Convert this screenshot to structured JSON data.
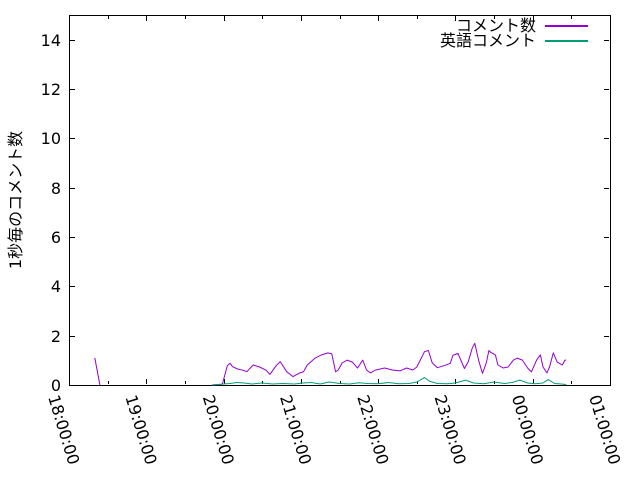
{
  "chart_data": {
    "type": "line",
    "title": "",
    "xlabel": "",
    "ylabel": "1秒毎のコメント数",
    "ylim": [
      0,
      15
    ],
    "y_ticks": [
      0,
      2,
      4,
      6,
      8,
      10,
      12,
      14
    ],
    "x_ticks": [
      "18:00:00",
      "19:00:00",
      "20:00:00",
      "21:00:00",
      "22:00:00",
      "23:00:00",
      "00:00:00",
      "01:00:00"
    ],
    "x_minor_ticks_per_interval": 1,
    "grid": false,
    "legend_position": "top-right-inside",
    "background_color": "#ffffff",
    "axis_color": "#000000",
    "series": [
      {
        "name": "コメント数",
        "color": "#9400d3",
        "segments": [
          [
            [
              "18:20",
              1.1
            ],
            [
              "18:24",
              0
            ]
          ],
          [
            [
              "19:51",
              0
            ],
            [
              "19:59",
              0.03
            ],
            [
              "20:03",
              0.79
            ],
            [
              "20:05",
              0.88
            ],
            [
              "20:07",
              0.74
            ],
            [
              "20:11",
              0.65
            ],
            [
              "20:15",
              0.6
            ],
            [
              "20:18",
              0.54
            ],
            [
              "20:23",
              0.81
            ],
            [
              "20:28",
              0.73
            ],
            [
              "20:33",
              0.6
            ],
            [
              "20:36",
              0.43
            ],
            [
              "20:41",
              0.8
            ],
            [
              "20:44",
              0.95
            ],
            [
              "20:49",
              0.54
            ],
            [
              "20:54",
              0.34
            ],
            [
              "20:59",
              0.49
            ],
            [
              "21:02",
              0.53
            ],
            [
              "21:05",
              0.81
            ],
            [
              "21:11",
              1.09
            ],
            [
              "21:16",
              1.22
            ],
            [
              "21:21",
              1.3
            ],
            [
              "21:24",
              1.26
            ],
            [
              "21:27",
              0.53
            ],
            [
              "21:29",
              0.61
            ],
            [
              "21:32",
              0.89
            ],
            [
              "21:36",
              1.01
            ],
            [
              "21:40",
              0.93
            ],
            [
              "21:44",
              0.69
            ],
            [
              "21:48",
              1.01
            ],
            [
              "21:51",
              0.61
            ],
            [
              "21:54",
              0.49
            ],
            [
              "21:58",
              0.61
            ],
            [
              "22:05",
              0.69
            ],
            [
              "22:11",
              0.61
            ],
            [
              "22:17",
              0.57
            ],
            [
              "22:22",
              0.69
            ],
            [
              "22:27",
              0.61
            ],
            [
              "22:30",
              0.73
            ],
            [
              "22:36",
              1.35
            ],
            [
              "22:39",
              1.4
            ],
            [
              "22:42",
              0.9
            ],
            [
              "22:46",
              0.7
            ],
            [
              "22:52",
              0.8
            ],
            [
              "22:56",
              0.88
            ],
            [
              "22:58",
              1.2
            ],
            [
              "23:02",
              1.28
            ],
            [
              "23:07",
              0.67
            ],
            [
              "23:10",
              0.95
            ],
            [
              "23:13",
              1.49
            ],
            [
              "23:15",
              1.69
            ],
            [
              "23:18",
              1.0
            ],
            [
              "23:21",
              0.47
            ],
            [
              "23:24",
              0.9
            ],
            [
              "23:26",
              1.4
            ],
            [
              "23:27",
              1.34
            ],
            [
              "23:31",
              1.22
            ],
            [
              "23:33",
              0.81
            ],
            [
              "23:37",
              0.69
            ],
            [
              "23:41",
              0.73
            ],
            [
              "23:45",
              1.01
            ],
            [
              "23:48",
              1.09
            ],
            [
              "23:52",
              1.01
            ],
            [
              "23:56",
              0.69
            ],
            [
              "23:59",
              0.53
            ],
            [
              "00:03",
              1.01
            ],
            [
              "00:06",
              1.22
            ],
            [
              "00:08",
              0.73
            ],
            [
              "00:11",
              0.49
            ],
            [
              "00:13",
              0.73
            ],
            [
              "00:16",
              1.3
            ],
            [
              "00:19",
              0.93
            ],
            [
              "00:23",
              0.81
            ],
            [
              "00:25",
              1.01
            ],
            [
              "00:26",
              1.01
            ]
          ]
        ]
      },
      {
        "name": "英語コメント",
        "color": "#009e73",
        "segments": [
          [
            [
              "19:51",
              0
            ],
            [
              "20:00",
              0.04
            ],
            [
              "20:05",
              0.06
            ],
            [
              "20:10",
              0.1
            ],
            [
              "20:16",
              0.08
            ],
            [
              "20:22",
              0.04
            ],
            [
              "20:30",
              0.08
            ],
            [
              "20:38",
              0.04
            ],
            [
              "20:46",
              0.06
            ],
            [
              "20:55",
              0.04
            ],
            [
              "21:02",
              0.08
            ],
            [
              "21:08",
              0.1
            ],
            [
              "21:15",
              0.04
            ],
            [
              "21:22",
              0.12
            ],
            [
              "21:30",
              0.06
            ],
            [
              "21:38",
              0.04
            ],
            [
              "21:45",
              0.09
            ],
            [
              "21:52",
              0.06
            ],
            [
              "22:00",
              0.05
            ],
            [
              "22:08",
              0.1
            ],
            [
              "22:16",
              0.05
            ],
            [
              "22:24",
              0.06
            ],
            [
              "22:30",
              0.12
            ],
            [
              "22:36",
              0.3
            ],
            [
              "22:40",
              0.15
            ],
            [
              "22:46",
              0.06
            ],
            [
              "22:54",
              0.05
            ],
            [
              "23:00",
              0.08
            ],
            [
              "23:08",
              0.2
            ],
            [
              "23:14",
              0.08
            ],
            [
              "23:22",
              0.05
            ],
            [
              "23:30",
              0.12
            ],
            [
              "23:38",
              0.06
            ],
            [
              "23:44",
              0.1
            ],
            [
              "23:50",
              0.2
            ],
            [
              "23:56",
              0.08
            ],
            [
              "00:02",
              0.05
            ],
            [
              "00:08",
              0.08
            ],
            [
              "00:12",
              0.22
            ],
            [
              "00:17",
              0.06
            ],
            [
              "00:22",
              0.04
            ],
            [
              "00:26",
              0.02
            ]
          ]
        ]
      }
    ]
  }
}
